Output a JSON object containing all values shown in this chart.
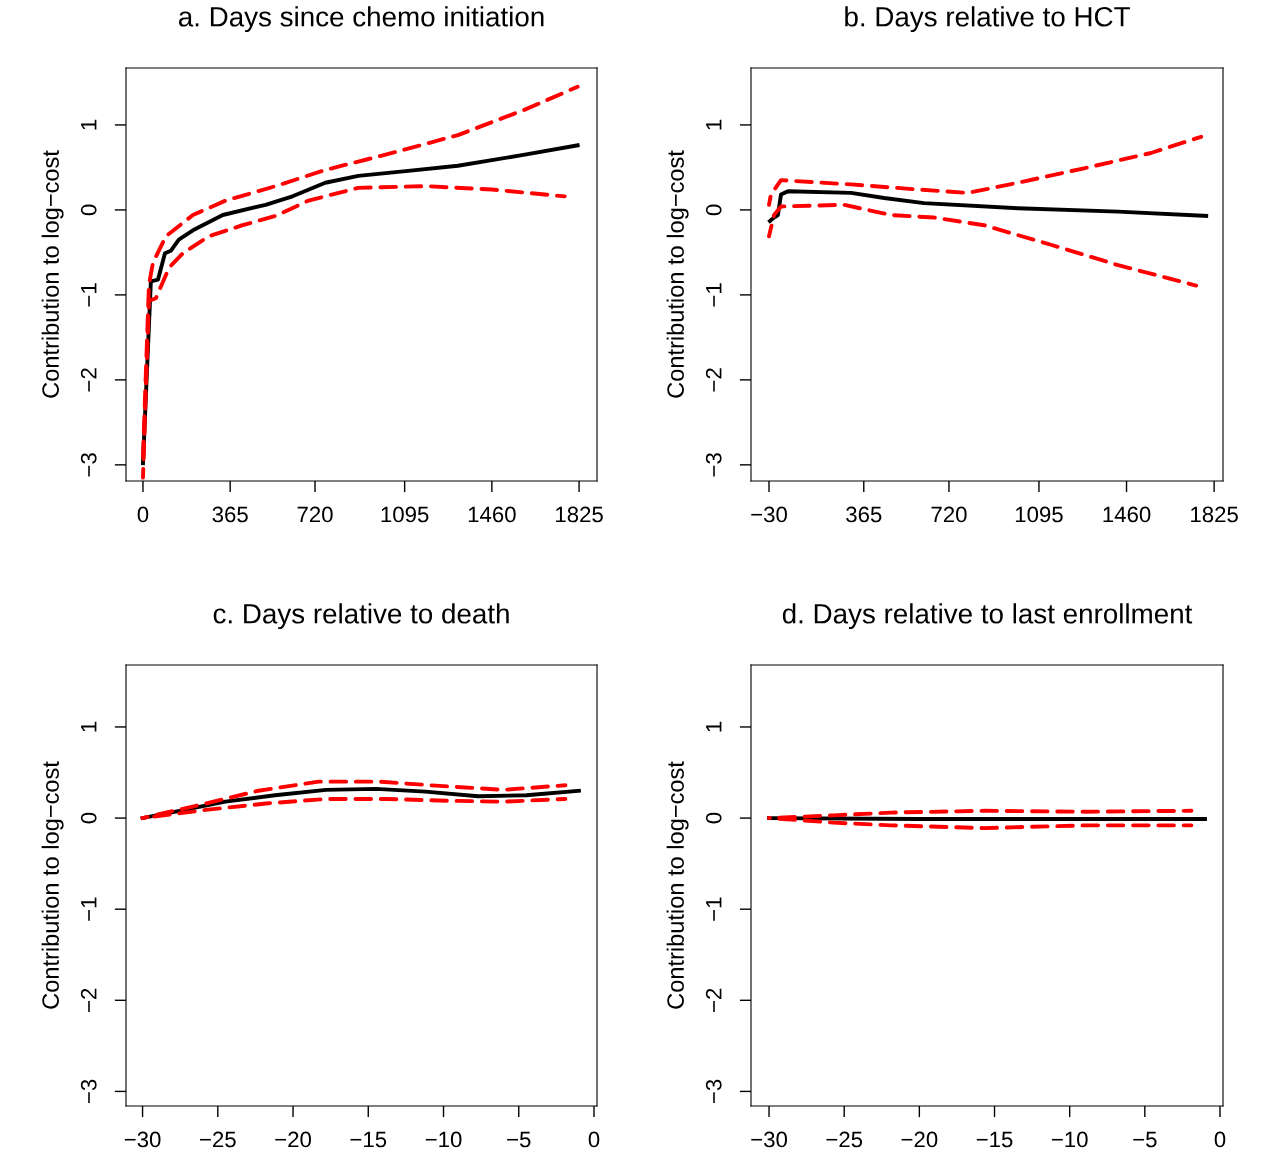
{
  "chart_data": [
    {
      "type": "line",
      "title": "a. Days since chemo initiation",
      "ylabel": "Contribution to log−cost",
      "xlim": [
        -71,
        1900
      ],
      "ylim": [
        -3.19,
        1.67
      ],
      "xticks": [
        0,
        365,
        720,
        1095,
        1460,
        1825
      ],
      "yticks": [
        {
          "value": -3,
          "label": "−3"
        },
        {
          "value": -2,
          "label": "−2"
        },
        {
          "value": -1,
          "label": "−1"
        },
        0,
        1
      ],
      "grid": false,
      "legend": false,
      "series": [
        {
          "color": "#000000",
          "line_style": "solid",
          "x": [
            0,
            33,
            63,
            92,
            117,
            150,
            209,
            334,
            513,
            626,
            763,
            901,
            1110,
            1318,
            1598,
            1819
          ],
          "values": [
            -2.98,
            -0.84,
            -0.82,
            -0.51,
            -0.48,
            -0.35,
            -0.24,
            -0.06,
            0.06,
            0.16,
            0.32,
            0.4,
            0.46,
            0.52,
            0.65,
            0.76
          ]
        },
        {
          "color": "#ff0000",
          "line_style": "dashed",
          "x": [
            0,
            25,
            42,
            96,
            209,
            346,
            555,
            763,
            1043,
            1318,
            1598,
            1819
          ],
          "values": [
            -2.9,
            -0.88,
            -0.62,
            -0.31,
            -0.06,
            0.11,
            0.28,
            0.47,
            0.67,
            0.88,
            1.18,
            1.45
          ]
        },
        {
          "color": "#ff0000",
          "line_style": "dashed",
          "x": [
            0,
            25,
            54,
            109,
            167,
            276,
            417,
            555,
            693,
            901,
            1181,
            1460,
            1765
          ],
          "values": [
            -3.15,
            -1.07,
            -1.04,
            -0.68,
            -0.51,
            -0.31,
            -0.18,
            -0.07,
            0.11,
            0.26,
            0.28,
            0.24,
            0.16
          ]
        }
      ]
    },
    {
      "type": "line",
      "title": "b. Days relative to HCT",
      "ylabel": "Contribution to log−cost",
      "xlim": [
        -105,
        1862
      ],
      "ylim": [
        -3.19,
        1.67
      ],
      "xticks": [
        {
          "value": -30,
          "label": "−30"
        },
        365,
        720,
        1095,
        1460,
        1825
      ],
      "yticks": [
        {
          "value": -3,
          "label": "−3"
        },
        {
          "value": -2,
          "label": "−2"
        },
        {
          "value": -1,
          "label": "−1"
        },
        0,
        1
      ],
      "grid": false,
      "legend": false,
      "series": [
        {
          "color": "#000000",
          "line_style": "solid",
          "x": [
            -26,
            -9,
            7,
            20,
            49,
            312,
            450,
            616,
            1008,
            1425,
            1792
          ],
          "values": [
            -0.13,
            -0.09,
            -0.06,
            0.18,
            0.22,
            0.2,
            0.14,
            0.08,
            0.02,
            -0.02,
            -0.07
          ]
        },
        {
          "color": "#ff0000",
          "line_style": "dashed",
          "x": [
            -30,
            -22,
            20,
            312,
            591,
            799,
            1008,
            1283,
            1562,
            1771
          ],
          "values": [
            0.06,
            0.18,
            0.35,
            0.3,
            0.24,
            0.2,
            0.32,
            0.49,
            0.67,
            0.86
          ]
        },
        {
          "color": "#ff0000",
          "line_style": "dashed",
          "x": [
            -30,
            -9,
            20,
            283,
            479,
            658,
            866,
            1145,
            1425,
            1750
          ],
          "values": [
            -0.31,
            -0.06,
            0.04,
            0.06,
            -0.06,
            -0.09,
            -0.18,
            -0.41,
            -0.65,
            -0.89
          ]
        }
      ]
    },
    {
      "type": "line",
      "title": "c. Days relative to death",
      "ylabel": "Contribution to log−cost",
      "xlim": [
        -31.1,
        0.2
      ],
      "ylim": [
        -3.16,
        1.68
      ],
      "xticks": [
        {
          "value": -30,
          "label": "−30"
        },
        {
          "value": -25,
          "label": "−25"
        },
        {
          "value": -20,
          "label": "−20"
        },
        {
          "value": -15,
          "label": "−15"
        },
        {
          "value": -10,
          "label": "−10"
        },
        {
          "value": -5,
          "label": "−5"
        },
        0
      ],
      "yticks": [
        {
          "value": -3,
          "label": "−3"
        },
        {
          "value": -2,
          "label": "−2"
        },
        {
          "value": -1,
          "label": "−1"
        },
        0,
        1
      ],
      "grid": false,
      "legend": false,
      "series": [
        {
          "color": "#000000",
          "line_style": "solid",
          "x": [
            -30,
            -27.8,
            -24.5,
            -21.2,
            -17.8,
            -14.5,
            -11.2,
            -7.7,
            -4.5,
            -1
          ],
          "values": [
            0,
            0.07,
            0.18,
            0.25,
            0.31,
            0.32,
            0.29,
            0.24,
            0.25,
            0.3
          ]
        },
        {
          "color": "#ff0000",
          "line_style": "dashed",
          "x": [
            -30,
            -25.8,
            -22.3,
            -18.3,
            -14.3,
            -10,
            -6,
            -1.9
          ],
          "values": [
            0,
            0.16,
            0.3,
            0.4,
            0.4,
            0.35,
            0.31,
            0.36
          ]
        },
        {
          "color": "#ff0000",
          "line_style": "dashed",
          "x": [
            -30,
            -25.8,
            -21.8,
            -17.8,
            -13.8,
            -9.8,
            -6,
            -1.9
          ],
          "values": [
            0,
            0.09,
            0.16,
            0.21,
            0.21,
            0.19,
            0.18,
            0.21
          ]
        }
      ]
    },
    {
      "type": "line",
      "title": "d. Days relative to last enrollment",
      "ylabel": "Contribution to log−cost",
      "xlim": [
        -31.2,
        0.2
      ],
      "ylim": [
        -3.16,
        1.68
      ],
      "xticks": [
        {
          "value": -30,
          "label": "−30"
        },
        {
          "value": -25,
          "label": "−25"
        },
        {
          "value": -20,
          "label": "−20"
        },
        {
          "value": -15,
          "label": "−15"
        },
        {
          "value": -10,
          "label": "−10"
        },
        {
          "value": -5,
          "label": "−5"
        },
        0
      ],
      "yticks": [
        {
          "value": -3,
          "label": "−3"
        },
        {
          "value": -2,
          "label": "−2"
        },
        {
          "value": -1,
          "label": "−1"
        },
        0,
        1
      ],
      "grid": false,
      "legend": false,
      "series": [
        {
          "color": "#000000",
          "line_style": "solid",
          "x": [
            -30,
            -20,
            -10,
            -1
          ],
          "values": [
            0,
            -0.01,
            -0.01,
            -0.01
          ]
        },
        {
          "color": "#ff0000",
          "line_style": "dashed",
          "x": [
            -30,
            -25.7,
            -21.9,
            -15.7,
            -9,
            -1.9
          ],
          "values": [
            0,
            0.03,
            0.06,
            0.08,
            0.07,
            0.08
          ]
        },
        {
          "color": "#ff0000",
          "line_style": "dashed",
          "x": [
            -30,
            -25.7,
            -21.9,
            -15.7,
            -9,
            -1.9
          ],
          "values": [
            0,
            -0.05,
            -0.08,
            -0.11,
            -0.08,
            -0.08
          ]
        }
      ]
    }
  ]
}
